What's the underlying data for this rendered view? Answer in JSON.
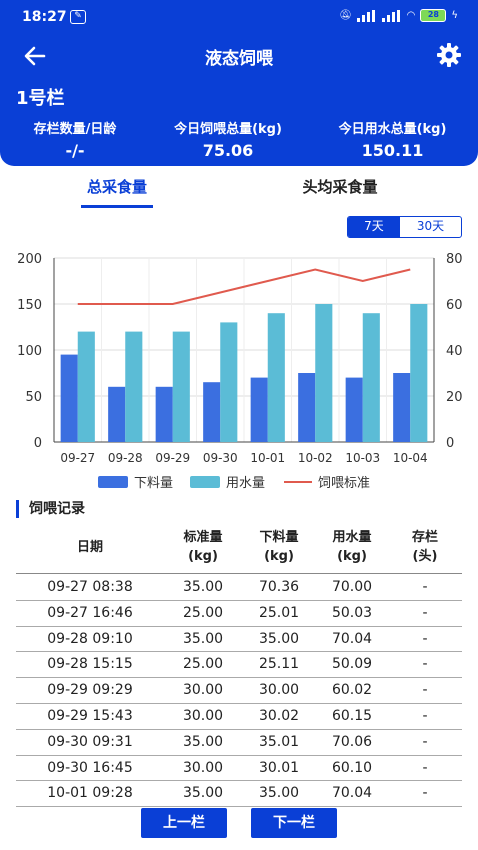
{
  "status": {
    "time": "18:27",
    "battery": "28"
  },
  "nav": {
    "title": "液态饲喂"
  },
  "pen": {
    "name": "1号栏"
  },
  "stats": [
    {
      "label": "存栏数量/日龄",
      "value": "-/-"
    },
    {
      "label": "今日饲喂总量(kg)",
      "value": "75.06"
    },
    {
      "label": "今日用水总量(kg)",
      "value": "150.11"
    }
  ],
  "tabs": {
    "total": "总采食量",
    "per_head": "头均采食量"
  },
  "range": {
    "week": "7天",
    "month": "30天",
    "selected": "7天"
  },
  "colors": {
    "primary": "#0a3fd6",
    "feed_bar": "#3b6fe0",
    "water_bar": "#5bbcd6",
    "standard_line": "#e05a4e"
  },
  "chart_data": {
    "type": "bar",
    "categories": [
      "09-27",
      "09-28",
      "09-29",
      "09-30",
      "10-01",
      "10-02",
      "10-03",
      "10-04"
    ],
    "series": [
      {
        "name": "下料量",
        "type": "bar",
        "axis": "left",
        "values": [
          95,
          60,
          60,
          65,
          70,
          75,
          70,
          75
        ]
      },
      {
        "name": "用水量",
        "type": "bar",
        "axis": "left",
        "values": [
          120,
          120,
          120,
          130,
          140,
          150,
          140,
          150
        ]
      },
      {
        "name": "饲喂标准",
        "type": "line",
        "axis": "right",
        "values": [
          60,
          60,
          60,
          65,
          70,
          75,
          70,
          75
        ]
      }
    ],
    "ylim_left": [
      0,
      200
    ],
    "yticks_left": [
      "0",
      "50",
      "100",
      "150",
      "200"
    ],
    "ylim_right": [
      0,
      80
    ],
    "yticks_right": [
      "0",
      "20",
      "40",
      "60",
      "80"
    ],
    "grid": true,
    "legend": "bottom"
  },
  "records": {
    "title": "饲喂记录",
    "headers": [
      {
        "line1": "日期",
        "line2": ""
      },
      {
        "line1": "标准量",
        "line2": "(kg)"
      },
      {
        "line1": "下料量",
        "line2": "(kg)"
      },
      {
        "line1": "用水量",
        "line2": "(kg)"
      },
      {
        "line1": "存栏",
        "line2": "(头)"
      }
    ],
    "rows": [
      [
        "09-27 08:38",
        "35.00",
        "70.36",
        "70.00",
        "-"
      ],
      [
        "09-27 16:46",
        "25.00",
        "25.01",
        "50.03",
        "-"
      ],
      [
        "09-28 09:10",
        "35.00",
        "35.00",
        "70.04",
        "-"
      ],
      [
        "09-28 15:15",
        "25.00",
        "25.11",
        "50.09",
        "-"
      ],
      [
        "09-29 09:29",
        "30.00",
        "30.00",
        "60.02",
        "-"
      ],
      [
        "09-29 15:43",
        "30.00",
        "30.02",
        "60.15",
        "-"
      ],
      [
        "09-30 09:31",
        "35.00",
        "35.01",
        "70.06",
        "-"
      ],
      [
        "09-30 16:45",
        "30.00",
        "30.01",
        "60.10",
        "-"
      ],
      [
        "10-01 09:28",
        "35.00",
        "35.00",
        "70.04",
        "-"
      ]
    ]
  },
  "pager": {
    "prev": "上一栏",
    "next": "下一栏"
  }
}
